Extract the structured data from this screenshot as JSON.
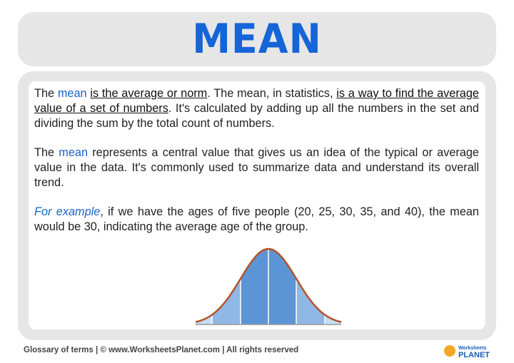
{
  "title": "MEAN",
  "paragraphs": {
    "p1": {
      "t1": "The ",
      "mean": "mean",
      "t2": " ",
      "u1": "is the average or norm",
      "t3": ". The mean, in statistics, ",
      "u2": "is a way to find the average value of a set of numbers",
      "t4": ". It's calculated by adding up all the numbers in the set and dividing the sum by the total count of numbers."
    },
    "p2": {
      "t1": "The ",
      "mean": "mean",
      "t2": " represents a central value that gives us an idea of the typical or average value in the data. It's commonly used to summarize data and understand its overall trend."
    },
    "p3": {
      "ex": "For example",
      "t1": ", if we have the ages of five people (20, 25, 30, 35, and 40), the mean would be 30, indicating the average age of the group."
    }
  },
  "footer": {
    "text": "Glossary of terms  |  © www.WorksheetsPlanet.com | All rights reserved"
  },
  "logo": {
    "line1": "Worksheets",
    "line2": "PLANET"
  },
  "colors": {
    "accent": "#1565d8",
    "curve": "#b5522a",
    "dark_fill": "#5b95d6",
    "light_fill": "#8fb8e6",
    "lightest_fill": "#c4dcf4"
  }
}
